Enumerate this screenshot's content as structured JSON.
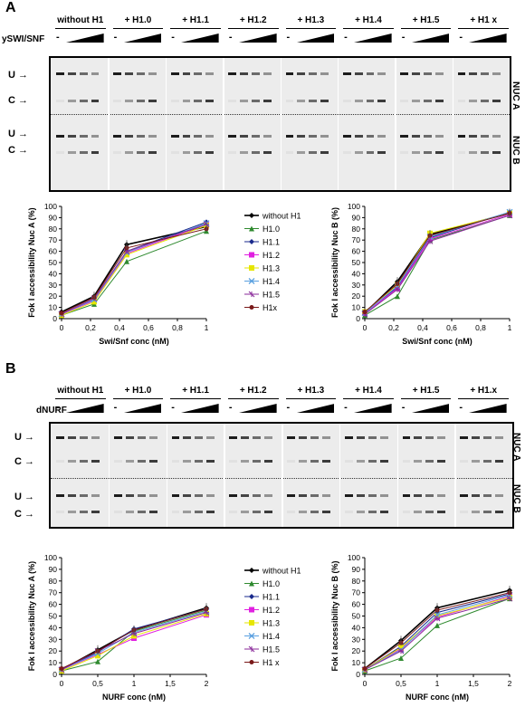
{
  "panelA": {
    "letter": "A",
    "treatment_label": "ySWI/SNF",
    "minus": "-",
    "lanes": [
      "without H1",
      "+ H1.0",
      "+ H1.1",
      "+ H1.2",
      "+ H1.3",
      "+ H1.4",
      "+ H1.5",
      "+ H1 x"
    ],
    "band_U": "U",
    "band_C": "C",
    "nuc_a": "NUC A",
    "nuc_b": "NUC B"
  },
  "panelB": {
    "letter": "B",
    "treatment_label": "dNURF",
    "minus": "-",
    "lanes": [
      "without H1",
      "+ H1.0",
      "+ H1.1",
      "+ H1.2",
      "+ H1.3",
      "+ H1.4",
      "+ H1.5",
      "+ H1.x"
    ],
    "band_U": "U",
    "band_C": "C",
    "nuc_a": "NUC A",
    "nuc_b": "NUC B"
  },
  "chart_data": [
    {
      "type": "line",
      "xlabel": "Swi/Snf conc (nM)",
      "ylabel": "Fok I accessibility Nuc A (%)",
      "x": [
        0,
        0.225,
        0.45,
        1
      ],
      "x_ticks": [
        "0",
        "0,2",
        "0,4",
        "0,6",
        "0,8",
        "1"
      ],
      "x_tick_values": [
        0,
        0.2,
        0.4,
        0.6,
        0.8,
        1
      ],
      "xlim": [
        0,
        1
      ],
      "ylim": [
        0,
        100
      ],
      "y_ticks": [
        0,
        10,
        20,
        30,
        40,
        50,
        60,
        70,
        80,
        90,
        100
      ],
      "legend_position": "right",
      "series": [
        {
          "name": "without H1",
          "color": "#000000",
          "values": [
            6,
            20,
            66,
            82
          ]
        },
        {
          "name": "H1.0",
          "color": "#2f8a2f",
          "values": [
            3,
            13,
            51,
            78
          ]
        },
        {
          "name": "H1.1",
          "color": "#1a2a8c",
          "values": [
            4,
            17,
            60,
            86
          ]
        },
        {
          "name": "H1.2",
          "color": "#e020e0",
          "values": [
            4,
            16,
            58,
            84
          ]
        },
        {
          "name": "H1.3",
          "color": "#e6e600",
          "values": [
            3,
            15,
            57,
            83
          ]
        },
        {
          "name": "H1.4",
          "color": "#5aa0e0",
          "values": [
            4,
            17,
            59,
            85
          ]
        },
        {
          "name": "H1.5",
          "color": "#8a2a9a",
          "values": [
            4,
            18,
            60,
            84
          ]
        },
        {
          "name": "H1x",
          "color": "#7a1a1a",
          "values": [
            5,
            19,
            63,
            80
          ]
        }
      ]
    },
    {
      "type": "line",
      "xlabel": "Swi/Snf conc (nM)",
      "ylabel": "Fok I accessibility Nuc B (%)",
      "x": [
        0,
        0.225,
        0.45,
        1
      ],
      "x_ticks": [
        "0",
        "0,2",
        "0,4",
        "0,6",
        "0,8",
        "1"
      ],
      "x_tick_values": [
        0,
        0.2,
        0.4,
        0.6,
        0.8,
        1
      ],
      "xlim": [
        0,
        1
      ],
      "ylim": [
        0,
        100
      ],
      "y_ticks": [
        0,
        10,
        20,
        30,
        40,
        50,
        60,
        70,
        80,
        90,
        100
      ],
      "series": [
        {
          "name": "without H1",
          "color": "#000000",
          "values": [
            5,
            33,
            75,
            94
          ]
        },
        {
          "name": "H1.0",
          "color": "#2f8a2f",
          "values": [
            3,
            20,
            70,
            92
          ]
        },
        {
          "name": "H1.1",
          "color": "#1a2a8c",
          "values": [
            5,
            28,
            72,
            95
          ]
        },
        {
          "name": "H1.2",
          "color": "#e020e0",
          "values": [
            5,
            27,
            71,
            93
          ]
        },
        {
          "name": "H1.3",
          "color": "#e6e600",
          "values": [
            6,
            30,
            76,
            94
          ]
        },
        {
          "name": "H1.4",
          "color": "#5aa0e0",
          "values": [
            5,
            29,
            73,
            95
          ]
        },
        {
          "name": "H1.5",
          "color": "#8a2a9a",
          "values": [
            4,
            26,
            69,
            92
          ]
        },
        {
          "name": "H1x",
          "color": "#7a1a1a",
          "values": [
            6,
            31,
            74,
            94
          ]
        }
      ]
    },
    {
      "type": "line",
      "xlabel": "NURF conc (nM)",
      "ylabel": "Fok I accessibility Nuc A (%)",
      "x": [
        0,
        0.5,
        1,
        2
      ],
      "x_ticks": [
        "0",
        "0,5",
        "1",
        "1,5",
        "2"
      ],
      "x_tick_values": [
        0,
        0.5,
        1,
        1.5,
        2
      ],
      "xlim": [
        0,
        2
      ],
      "ylim": [
        0,
        100
      ],
      "y_ticks": [
        0,
        10,
        20,
        30,
        40,
        50,
        60,
        70,
        80,
        90,
        100
      ],
      "legend_position": "right",
      "series": [
        {
          "name": "without H1",
          "color": "#000000",
          "values": [
            4,
            21,
            38,
            57
          ]
        },
        {
          "name": "H1.0",
          "color": "#2f8a2f",
          "values": [
            3,
            11,
            37,
            55
          ]
        },
        {
          "name": "H1.1",
          "color": "#1a2a8c",
          "values": [
            4,
            19,
            39,
            56
          ]
        },
        {
          "name": "H1.2",
          "color": "#e020e0",
          "values": [
            4,
            17,
            31,
            51
          ]
        },
        {
          "name": "H1.3",
          "color": "#e6e600",
          "values": [
            3,
            16,
            33,
            52
          ]
        },
        {
          "name": "H1.4",
          "color": "#5aa0e0",
          "values": [
            4,
            18,
            36,
            54
          ]
        },
        {
          "name": "H1.5",
          "color": "#8a2a9a",
          "values": [
            4,
            20,
            35,
            53
          ]
        },
        {
          "name": "H1 x",
          "color": "#7a1a1a",
          "values": [
            5,
            20,
            38,
            56
          ]
        }
      ]
    },
    {
      "type": "line",
      "xlabel": "NURF conc (nM)",
      "ylabel": "Fok I accessibility Nuc B (%)",
      "x": [
        0,
        0.5,
        1,
        2
      ],
      "x_ticks": [
        "0",
        "0,5",
        "1",
        "1,5",
        "2"
      ],
      "x_tick_values": [
        0,
        0.5,
        1,
        1.5,
        2
      ],
      "xlim": [
        0,
        2
      ],
      "ylim": [
        0,
        100
      ],
      "y_ticks": [
        0,
        10,
        20,
        30,
        40,
        50,
        60,
        70,
        80,
        90,
        100
      ],
      "series": [
        {
          "name": "without H1",
          "color": "#000000",
          "values": [
            5,
            29,
            57,
            72
          ]
        },
        {
          "name": "H1.0",
          "color": "#2f8a2f",
          "values": [
            3,
            14,
            42,
            65
          ]
        },
        {
          "name": "H1.1",
          "color": "#1a2a8c",
          "values": [
            4,
            24,
            53,
            69
          ]
        },
        {
          "name": "H1.2",
          "color": "#e020e0",
          "values": [
            4,
            22,
            49,
            67
          ]
        },
        {
          "name": "H1.3",
          "color": "#e6e600",
          "values": [
            4,
            23,
            50,
            66
          ]
        },
        {
          "name": "H1.4",
          "color": "#5aa0e0",
          "values": [
            4,
            21,
            51,
            68
          ]
        },
        {
          "name": "H1.5",
          "color": "#8a2a9a",
          "values": [
            4,
            20,
            48,
            65
          ]
        },
        {
          "name": "H1 x",
          "color": "#7a1a1a",
          "values": [
            5,
            27,
            55,
            70
          ]
        }
      ]
    }
  ]
}
